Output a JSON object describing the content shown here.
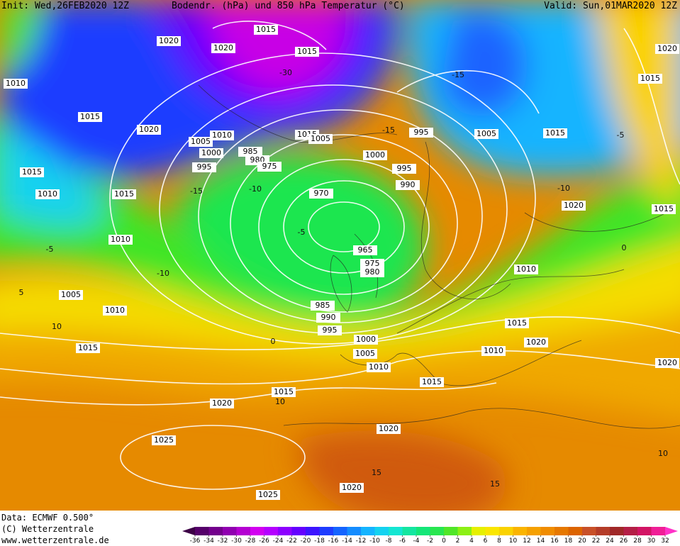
{
  "header": {
    "init": "Init: Wed,26FEB2020 12Z",
    "title": "Bodendr. (hPa) und 850 hPa Temperatur (°C)",
    "valid": "Valid: Sun,01MAR2020 12Z"
  },
  "footer": {
    "data": "Data: ECMWF   0.500°",
    "copyright": "(C) Wetterzentrale",
    "url": "www.wetterzentrale.de"
  },
  "isobar_labels": [
    1015,
    1020,
    1020,
    1015,
    1010,
    1015,
    1020,
    1010,
    1005,
    1015,
    1005,
    1000,
    985,
    980,
    975,
    995,
    1000,
    995,
    1005,
    1015,
    995,
    990,
    970,
    1015,
    1010,
    1015,
    1020,
    1015,
    1010,
    965,
    975,
    980,
    1010,
    1005,
    1010,
    985,
    990,
    995,
    1015,
    1000,
    1020,
    1010,
    1005,
    1015,
    1010,
    1020,
    1015,
    1015,
    1020,
    1020,
    1025,
    1020,
    1025,
    1015,
    1020
  ],
  "temperature_labels": [
    -30,
    -15,
    -15,
    -15,
    -10,
    -10,
    -5,
    -5,
    -5,
    -10,
    5,
    10,
    0,
    10,
    15,
    15,
    10,
    0
  ],
  "colorbar": {
    "ticks": [
      -36,
      -34,
      -32,
      -30,
      -28,
      -26,
      -24,
      -22,
      -20,
      -18,
      -16,
      -14,
      -12,
      -10,
      -8,
      -6,
      -4,
      -2,
      0,
      2,
      4,
      6,
      8,
      10,
      12,
      14,
      16,
      18,
      20,
      22,
      24,
      26,
      28,
      30,
      32
    ],
    "colors": [
      "#3c0046",
      "#55006a",
      "#73008c",
      "#9000b0",
      "#b400d2",
      "#d200f0",
      "#b400ff",
      "#8c00ff",
      "#6400ff",
      "#3c14ff",
      "#1e3cff",
      "#1464ff",
      "#148cff",
      "#14b4ff",
      "#14d2f0",
      "#14e6d2",
      "#14e6a0",
      "#14e678",
      "#28e650",
      "#50e628",
      "#8cf014",
      "#e6f000",
      "#fae600",
      "#fad200",
      "#fab400",
      "#f5a000",
      "#f08c00",
      "#e67800",
      "#dc6400",
      "#c85028",
      "#b43c28",
      "#a02828",
      "#b41e46",
      "#d21464",
      "#f01e96",
      "#ff32c8"
    ]
  }
}
